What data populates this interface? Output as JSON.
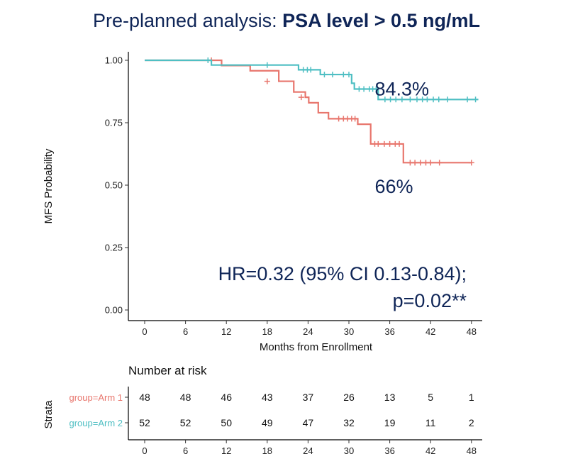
{
  "title": {
    "prefix": "Pre-planned analysis: ",
    "bold": "PSA level > 0.5 ng/mL"
  },
  "colors": {
    "arm1": "#e8766d",
    "arm2": "#4fbfc3",
    "text": "#0f2557"
  },
  "chart_data": {
    "type": "line",
    "subtype": "kaplan-meier",
    "xlabel": "Months from Enrollment",
    "ylabel": "MFS Probability",
    "xlim": [
      -1,
      49
    ],
    "ylim": [
      0,
      1.02
    ],
    "xticks": [
      0,
      6,
      12,
      18,
      24,
      30,
      36,
      42,
      48
    ],
    "yticks": [
      "0.00",
      "0.25",
      "0.50",
      "0.75",
      "1.00"
    ],
    "grid": false,
    "series": [
      {
        "name": "group=Arm 1",
        "color": "#e8766d",
        "steps": [
          [
            0,
            1.0
          ],
          [
            11.3,
            0.979
          ],
          [
            15.5,
            0.958
          ],
          [
            19.7,
            0.916
          ],
          [
            21.9,
            0.873
          ],
          [
            23.6,
            0.852
          ],
          [
            24.1,
            0.83
          ],
          [
            25.5,
            0.79
          ],
          [
            27.0,
            0.766
          ],
          [
            31.3,
            0.744
          ],
          [
            33.2,
            0.665
          ],
          [
            38.0,
            0.59
          ],
          [
            48.0,
            0.59
          ]
        ],
        "censors": [
          [
            9.8,
            1.0
          ],
          [
            18.0,
            0.916
          ],
          [
            23.0,
            0.852
          ],
          [
            28.5,
            0.766
          ],
          [
            29.2,
            0.766
          ],
          [
            29.8,
            0.766
          ],
          [
            30.4,
            0.766
          ],
          [
            30.9,
            0.766
          ],
          [
            33.8,
            0.665
          ],
          [
            34.3,
            0.665
          ],
          [
            35.2,
            0.665
          ],
          [
            36.0,
            0.665
          ],
          [
            36.8,
            0.665
          ],
          [
            37.4,
            0.665
          ],
          [
            39.0,
            0.59
          ],
          [
            39.7,
            0.59
          ],
          [
            40.5,
            0.59
          ],
          [
            41.3,
            0.59
          ],
          [
            42.0,
            0.59
          ],
          [
            43.3,
            0.59
          ],
          [
            48.0,
            0.59
          ]
        ]
      },
      {
        "name": "group=Arm 2",
        "color": "#4fbfc3",
        "steps": [
          [
            0,
            1.0
          ],
          [
            9.8,
            0.981
          ],
          [
            22.6,
            0.962
          ],
          [
            25.8,
            0.943
          ],
          [
            30.4,
            0.908
          ],
          [
            30.8,
            0.885
          ],
          [
            34.3,
            0.843
          ],
          [
            49.0,
            0.843
          ]
        ],
        "censors": [
          [
            9.3,
            1.0
          ],
          [
            18.0,
            0.981
          ],
          [
            23.3,
            0.962
          ],
          [
            23.9,
            0.962
          ],
          [
            24.4,
            0.962
          ],
          [
            26.4,
            0.943
          ],
          [
            27.6,
            0.943
          ],
          [
            29.2,
            0.943
          ],
          [
            30.0,
            0.943
          ],
          [
            31.5,
            0.885
          ],
          [
            32.2,
            0.885
          ],
          [
            33.0,
            0.885
          ],
          [
            33.5,
            0.885
          ],
          [
            34.0,
            0.885
          ],
          [
            35.3,
            0.843
          ],
          [
            36.1,
            0.843
          ],
          [
            36.9,
            0.843
          ],
          [
            37.8,
            0.843
          ],
          [
            39.0,
            0.843
          ],
          [
            40.0,
            0.843
          ],
          [
            40.8,
            0.843
          ],
          [
            41.5,
            0.843
          ],
          [
            42.4,
            0.843
          ],
          [
            43.2,
            0.843
          ],
          [
            44.5,
            0.843
          ],
          [
            47.4,
            0.843
          ],
          [
            48.6,
            0.843
          ]
        ]
      }
    ],
    "annotations": [
      {
        "text": "84.3%",
        "x": 33.8,
        "y": 0.885
      },
      {
        "text": "66%",
        "x": 33.8,
        "y": 0.495
      }
    ],
    "stats": {
      "line1": "HR=0.32 (95% CI 0.13-0.84);",
      "line2": "p=0.02**"
    }
  },
  "risk_table": {
    "title": "Number at risk",
    "ylabel": "Strata",
    "times": [
      0,
      6,
      12,
      18,
      24,
      30,
      36,
      42,
      48
    ],
    "rows": [
      {
        "name": "group=Arm 1",
        "color": "#e8766d",
        "values": [
          48,
          48,
          46,
          43,
          37,
          26,
          13,
          5,
          1
        ]
      },
      {
        "name": "group=Arm 2",
        "color": "#4fbfc3",
        "values": [
          52,
          52,
          50,
          49,
          47,
          32,
          19,
          11,
          2
        ]
      }
    ]
  }
}
